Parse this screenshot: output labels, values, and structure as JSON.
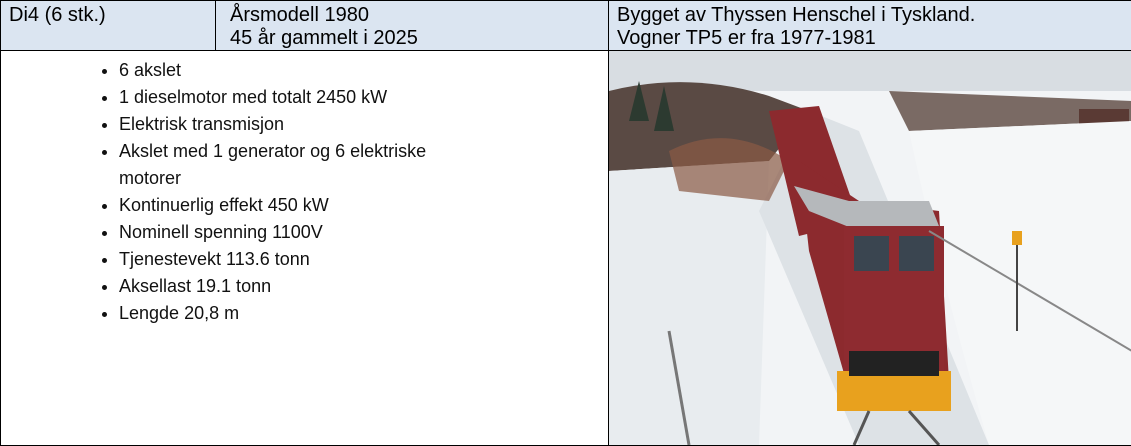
{
  "table": {
    "header": {
      "model": "Di4 (6 stk.)",
      "year": [
        "Årsmodell 1980",
        "45 år gammelt i 2025"
      ],
      "builder": [
        "Bygget av Thyssen Henschel i Tyskland.",
        "Vogner TP5 er fra 1977-1981"
      ]
    },
    "specs": [
      "6 akslet",
      "1 dieselmotor med totalt 2450 kW",
      "Elektrisk transmisjon",
      "Akslet med 1 generator og 6 elektriske motorer",
      "Kontinuerlig effekt 450 kW",
      "Nominell spenning 1100V",
      "Tjenestevekt 113.6 tonn",
      "Aksellast 19.1 tonn",
      "Lengde 20,8 m"
    ]
  }
}
